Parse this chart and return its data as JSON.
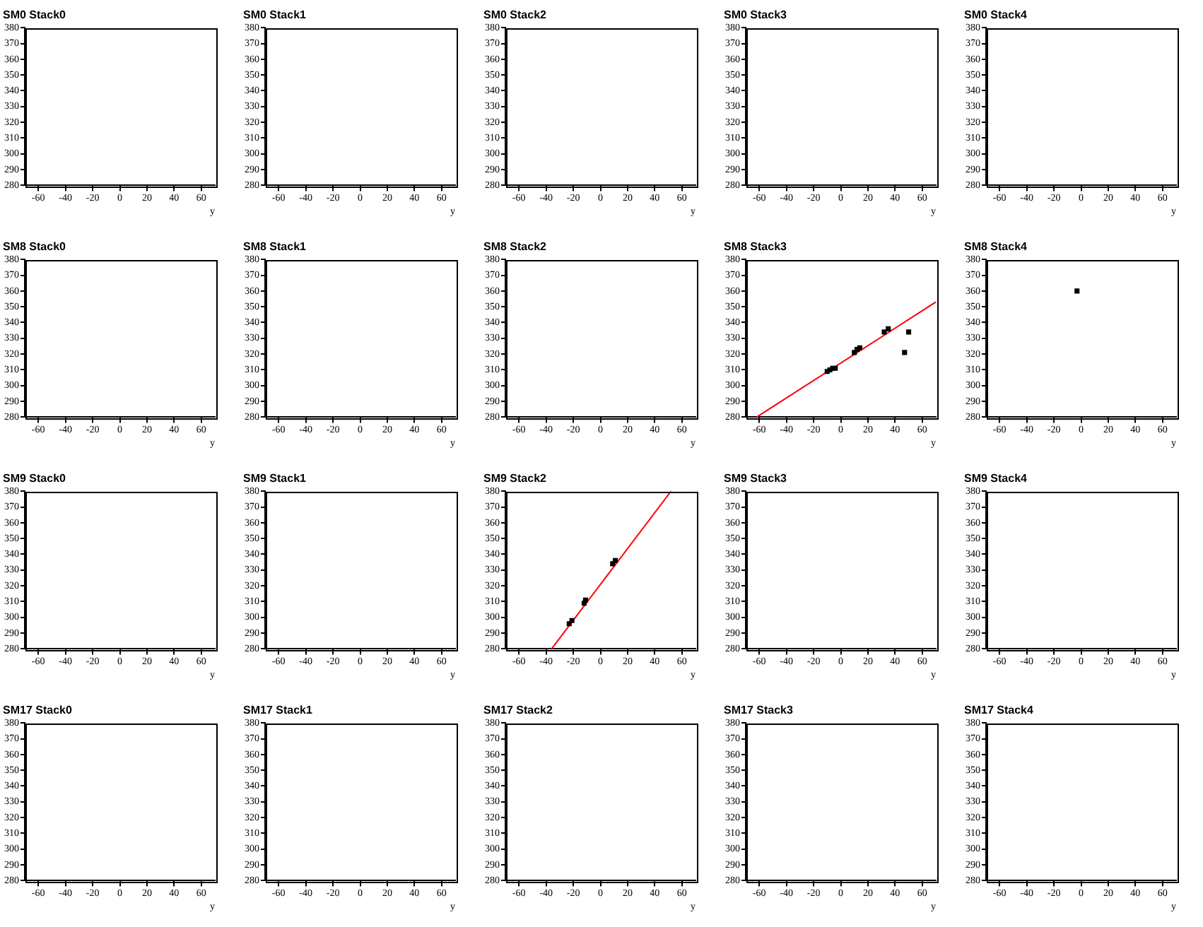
{
  "chart_data": [
    {
      "type": "scatter",
      "title": "SM0 Stack0",
      "xlabel": "y",
      "xlim": [
        -70,
        70
      ],
      "xticks": [
        -60,
        -40,
        -20,
        0,
        20,
        40,
        60
      ],
      "ylim": [
        280,
        380
      ],
      "yticks": [
        280,
        290,
        300,
        310,
        320,
        330,
        340,
        350,
        360,
        370,
        380
      ],
      "grid": false,
      "legend": false
    },
    {
      "type": "scatter",
      "title": "SM0 Stack1",
      "xlabel": "y",
      "xlim": [
        -70,
        70
      ],
      "xticks": [
        -60,
        -40,
        -20,
        0,
        20,
        40,
        60
      ],
      "ylim": [
        280,
        380
      ],
      "yticks": [
        280,
        290,
        300,
        310,
        320,
        330,
        340,
        350,
        360,
        370,
        380
      ],
      "grid": false,
      "legend": false
    },
    {
      "type": "scatter",
      "title": "SM0 Stack2",
      "xlabel": "y",
      "xlim": [
        -70,
        70
      ],
      "xticks": [
        -60,
        -40,
        -20,
        0,
        20,
        40,
        60
      ],
      "ylim": [
        280,
        380
      ],
      "yticks": [
        280,
        290,
        300,
        310,
        320,
        330,
        340,
        350,
        360,
        370,
        380
      ],
      "grid": false,
      "legend": false
    },
    {
      "type": "scatter",
      "title": "SM0 Stack3",
      "xlabel": "y",
      "xlim": [
        -70,
        70
      ],
      "xticks": [
        -60,
        -40,
        -20,
        0,
        20,
        40,
        60
      ],
      "ylim": [
        280,
        380
      ],
      "yticks": [
        280,
        290,
        300,
        310,
        320,
        330,
        340,
        350,
        360,
        370,
        380
      ],
      "grid": false,
      "legend": false
    },
    {
      "type": "scatter",
      "title": "SM0 Stack4",
      "xlabel": "y",
      "xlim": [
        -70,
        70
      ],
      "xticks": [
        -60,
        -40,
        -20,
        0,
        20,
        40,
        60
      ],
      "ylim": [
        280,
        380
      ],
      "yticks": [
        280,
        290,
        300,
        310,
        320,
        330,
        340,
        350,
        360,
        370,
        380
      ],
      "grid": false,
      "legend": false
    },
    {
      "type": "scatter",
      "title": "SM8 Stack0",
      "xlabel": "y",
      "xlim": [
        -70,
        70
      ],
      "xticks": [
        -60,
        -40,
        -20,
        0,
        20,
        40,
        60
      ],
      "ylim": [
        280,
        380
      ],
      "yticks": [
        280,
        290,
        300,
        310,
        320,
        330,
        340,
        350,
        360,
        370,
        380
      ],
      "grid": false,
      "legend": false
    },
    {
      "type": "scatter",
      "title": "SM8 Stack1",
      "xlabel": "y",
      "xlim": [
        -70,
        70
      ],
      "xticks": [
        -60,
        -40,
        -20,
        0,
        20,
        40,
        60
      ],
      "ylim": [
        280,
        380
      ],
      "yticks": [
        280,
        290,
        300,
        310,
        320,
        330,
        340,
        350,
        360,
        370,
        380
      ],
      "grid": false,
      "legend": false
    },
    {
      "type": "scatter",
      "title": "SM8 Stack2",
      "xlabel": "y",
      "xlim": [
        -70,
        70
      ],
      "xticks": [
        -60,
        -40,
        -20,
        0,
        20,
        40,
        60
      ],
      "ylim": [
        280,
        380
      ],
      "yticks": [
        280,
        290,
        300,
        310,
        320,
        330,
        340,
        350,
        360,
        370,
        380
      ],
      "grid": false,
      "legend": false
    },
    {
      "type": "scatter",
      "title": "SM8 Stack3",
      "xlabel": "y",
      "xlim": [
        -70,
        70
      ],
      "xticks": [
        -60,
        -40,
        -20,
        0,
        20,
        40,
        60
      ],
      "ylim": [
        280,
        380
      ],
      "yticks": [
        280,
        290,
        300,
        310,
        320,
        330,
        340,
        350,
        360,
        370,
        380
      ],
      "grid": false,
      "legend": false,
      "series": [
        {
          "type": "scatter",
          "color": "#000000",
          "marker": "square",
          "x": [
            -10,
            -8,
            -6,
            -4,
            10,
            12,
            14,
            32,
            35,
            47,
            50
          ],
          "values": [
            309,
            310,
            311,
            311,
            321,
            323,
            324,
            334,
            336,
            321,
            334
          ]
        },
        {
          "type": "line",
          "color": "#ff0000",
          "marker": "none",
          "line_style": "solid",
          "x": [
            -62,
            70
          ],
          "values": [
            280,
            353
          ]
        }
      ]
    },
    {
      "type": "scatter",
      "title": "SM8 Stack4",
      "xlabel": "y",
      "xlim": [
        -70,
        70
      ],
      "xticks": [
        -60,
        -40,
        -20,
        0,
        20,
        40,
        60
      ],
      "ylim": [
        280,
        380
      ],
      "yticks": [
        280,
        290,
        300,
        310,
        320,
        330,
        340,
        350,
        360,
        370,
        380
      ],
      "grid": false,
      "legend": false,
      "series": [
        {
          "type": "scatter",
          "color": "#000000",
          "marker": "square",
          "x": [
            -3
          ],
          "values": [
            360
          ]
        }
      ]
    },
    {
      "type": "scatter",
      "title": "SM9 Stack0",
      "xlabel": "y",
      "xlim": [
        -70,
        70
      ],
      "xticks": [
        -60,
        -40,
        -20,
        0,
        20,
        40,
        60
      ],
      "ylim": [
        280,
        380
      ],
      "yticks": [
        280,
        290,
        300,
        310,
        320,
        330,
        340,
        350,
        360,
        370,
        380
      ],
      "grid": false,
      "legend": false
    },
    {
      "type": "scatter",
      "title": "SM9 Stack1",
      "xlabel": "y",
      "xlim": [
        -70,
        70
      ],
      "xticks": [
        -60,
        -40,
        -20,
        0,
        20,
        40,
        60
      ],
      "ylim": [
        280,
        380
      ],
      "yticks": [
        280,
        290,
        300,
        310,
        320,
        330,
        340,
        350,
        360,
        370,
        380
      ],
      "grid": false,
      "legend": false
    },
    {
      "type": "scatter",
      "title": "SM9 Stack2",
      "xlabel": "y",
      "xlim": [
        -70,
        70
      ],
      "xticks": [
        -60,
        -40,
        -20,
        0,
        20,
        40,
        60
      ],
      "ylim": [
        280,
        380
      ],
      "yticks": [
        280,
        290,
        300,
        310,
        320,
        330,
        340,
        350,
        360,
        370,
        380
      ],
      "grid": false,
      "legend": false,
      "series": [
        {
          "type": "scatter",
          "color": "#000000",
          "marker": "square",
          "x": [
            -23,
            -21,
            -12,
            -11,
            9,
            11
          ],
          "values": [
            296,
            298,
            309,
            311,
            334,
            336
          ]
        },
        {
          "type": "line",
          "color": "#ff0000",
          "marker": "none",
          "line_style": "solid",
          "x": [
            -36,
            52
          ],
          "values": [
            280,
            380
          ]
        }
      ]
    },
    {
      "type": "scatter",
      "title": "SM9 Stack3",
      "xlabel": "y",
      "xlim": [
        -70,
        70
      ],
      "xticks": [
        -60,
        -40,
        -20,
        0,
        20,
        40,
        60
      ],
      "ylim": [
        280,
        380
      ],
      "yticks": [
        280,
        290,
        300,
        310,
        320,
        330,
        340,
        350,
        360,
        370,
        380
      ],
      "grid": false,
      "legend": false
    },
    {
      "type": "scatter",
      "title": "SM9 Stack4",
      "xlabel": "y",
      "xlim": [
        -70,
        70
      ],
      "xticks": [
        -60,
        -40,
        -20,
        0,
        20,
        40,
        60
      ],
      "ylim": [
        280,
        380
      ],
      "yticks": [
        280,
        290,
        300,
        310,
        320,
        330,
        340,
        350,
        360,
        370,
        380
      ],
      "grid": false,
      "legend": false
    },
    {
      "type": "scatter",
      "title": "SM17 Stack0",
      "xlabel": "y",
      "xlim": [
        -70,
        70
      ],
      "xticks": [
        -60,
        -40,
        -20,
        0,
        20,
        40,
        60
      ],
      "ylim": [
        280,
        380
      ],
      "yticks": [
        280,
        290,
        300,
        310,
        320,
        330,
        340,
        350,
        360,
        370,
        380
      ],
      "grid": false,
      "legend": false
    },
    {
      "type": "scatter",
      "title": "SM17 Stack1",
      "xlabel": "y",
      "xlim": [
        -70,
        70
      ],
      "xticks": [
        -60,
        -40,
        -20,
        0,
        20,
        40,
        60
      ],
      "ylim": [
        280,
        380
      ],
      "yticks": [
        280,
        290,
        300,
        310,
        320,
        330,
        340,
        350,
        360,
        370,
        380
      ],
      "grid": false,
      "legend": false
    },
    {
      "type": "scatter",
      "title": "SM17 Stack2",
      "xlabel": "y",
      "xlim": [
        -70,
        70
      ],
      "xticks": [
        -60,
        -40,
        -20,
        0,
        20,
        40,
        60
      ],
      "ylim": [
        280,
        380
      ],
      "yticks": [
        280,
        290,
        300,
        310,
        320,
        330,
        340,
        350,
        360,
        370,
        380
      ],
      "grid": false,
      "legend": false
    },
    {
      "type": "scatter",
      "title": "SM17 Stack3",
      "xlabel": "y",
      "xlim": [
        -70,
        70
      ],
      "xticks": [
        -60,
        -40,
        -20,
        0,
        20,
        40,
        60
      ],
      "ylim": [
        280,
        380
      ],
      "yticks": [
        280,
        290,
        300,
        310,
        320,
        330,
        340,
        350,
        360,
        370,
        380
      ],
      "grid": false,
      "legend": false
    },
    {
      "type": "scatter",
      "title": "SM17 Stack4",
      "xlabel": "y",
      "xlim": [
        -70,
        70
      ],
      "xticks": [
        -60,
        -40,
        -20,
        0,
        20,
        40,
        60
      ],
      "ylim": [
        280,
        380
      ],
      "yticks": [
        280,
        290,
        300,
        310,
        320,
        330,
        340,
        350,
        360,
        370,
        380
      ],
      "grid": false,
      "legend": false
    }
  ]
}
